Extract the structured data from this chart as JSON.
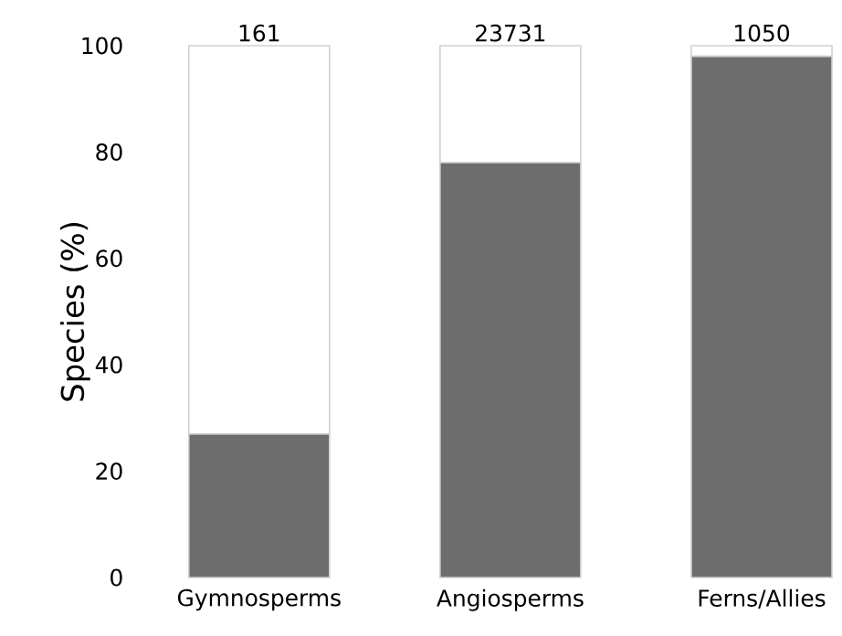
{
  "chart_data": {
    "type": "bar",
    "stacked": true,
    "ylabel": "Species (%)",
    "categories": [
      "Gymnosperms",
      "Angiosperms",
      "Ferns/Allies"
    ],
    "series": [
      {
        "color": "#6d6d6d",
        "values": [
          27,
          78,
          98
        ]
      },
      {
        "color": "#ffffff",
        "values": [
          73,
          22,
          2
        ]
      }
    ],
    "annotations": [
      {
        "text": "161",
        "x": "Gymnosperms",
        "y": 100
      },
      {
        "text": "23731",
        "x": "Angiosperms",
        "y": 100
      },
      {
        "text": "1050",
        "x": "Ferns/Allies",
        "y": 100
      }
    ],
    "ylim": [
      0,
      100
    ],
    "yticks": [
      0,
      20,
      40,
      60,
      80,
      100
    ]
  }
}
